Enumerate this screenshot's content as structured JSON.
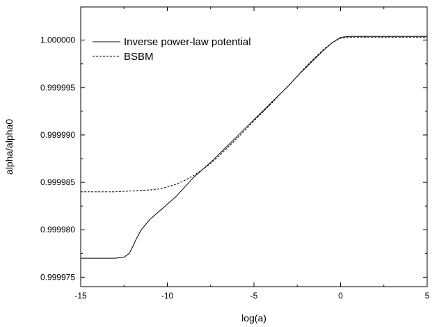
{
  "chart_data": {
    "type": "line",
    "xlabel": "log(a)",
    "ylabel": "alpha/alpha0",
    "xlim": [
      -15,
      5
    ],
    "ylim": [
      0.999974,
      1.0000035
    ],
    "x_ticks": [
      -15,
      -10,
      -5,
      0,
      5
    ],
    "x_tick_labels": [
      "-15",
      "-10",
      "-5",
      "0",
      "5"
    ],
    "y_ticks": [
      0.999975,
      0.99998,
      0.999985,
      0.99999,
      0.999995,
      1.0
    ],
    "y_tick_labels": [
      "0.999975",
      "0.999980",
      "0.999985",
      "0.999990",
      "0.999995",
      "1.000000"
    ],
    "grid": false,
    "legend_position": "top-left",
    "series": [
      {
        "name": "Inverse power-law potential",
        "style": "solid",
        "color": "#000000",
        "x": [
          -15,
          -13,
          -12.5,
          -12.2,
          -12.0,
          -11.8,
          -11.5,
          -11.0,
          -10.5,
          -10.0,
          -9.5,
          -9.0,
          -8.5,
          -8.0,
          -7.5,
          -7.0,
          -6.5,
          -6.0,
          -5.5,
          -5.0,
          -4.5,
          -4.0,
          -3.5,
          -3.0,
          -2.5,
          -2.0,
          -1.5,
          -1.0,
          -0.5,
          0.0,
          0.5,
          1.0,
          1.5,
          2.0,
          3.0,
          5.0
        ],
        "y": [
          0.999977,
          0.999977,
          0.9999771,
          0.9999775,
          0.9999782,
          0.999979,
          0.99998,
          0.9999811,
          0.9999819,
          0.9999827,
          0.9999835,
          0.9999845,
          0.9999855,
          0.9999863,
          0.9999871,
          0.999988,
          0.9999889,
          0.9999898,
          0.9999907,
          0.9999916,
          0.9999925,
          0.9999934,
          0.9999943,
          0.9999952,
          0.9999962,
          0.9999971,
          0.999998,
          0.9999989,
          0.9999997,
          1.0000003,
          1.0000004,
          1.0000004,
          1.0000004,
          1.0000004,
          1.0000004,
          1.0000004
        ]
      },
      {
        "name": "BSBM",
        "style": "dashed",
        "color": "#000000",
        "x": [
          -15,
          -13,
          -12,
          -11,
          -10.5,
          -10.0,
          -9.5,
          -9.0,
          -8.5,
          -8.0,
          -7.5,
          -7.0,
          -6.5,
          -6.0,
          -5.5,
          -5.0,
          -4.5,
          -4.0,
          -3.5,
          -3.0,
          -2.5,
          -2.0,
          -1.5,
          -1.0,
          -0.5,
          0.0,
          0.5,
          1.0,
          1.5,
          2.0,
          3.0,
          5.0
        ],
        "y": [
          0.999984,
          0.999984,
          0.9999841,
          0.9999842,
          0.9999843,
          0.9999845,
          0.9999848,
          0.9999852,
          0.9999857,
          0.9999863,
          0.999987,
          0.9999878,
          0.9999887,
          0.9999896,
          0.9999905,
          0.9999915,
          0.9999924,
          0.9999933,
          0.9999943,
          0.9999952,
          0.9999962,
          0.9999972,
          0.9999981,
          0.999999,
          0.9999997,
          1.0000002,
          1.0000003,
          1.0000003,
          1.0000003,
          1.0000003,
          1.0000003,
          1.0000003
        ]
      }
    ]
  }
}
